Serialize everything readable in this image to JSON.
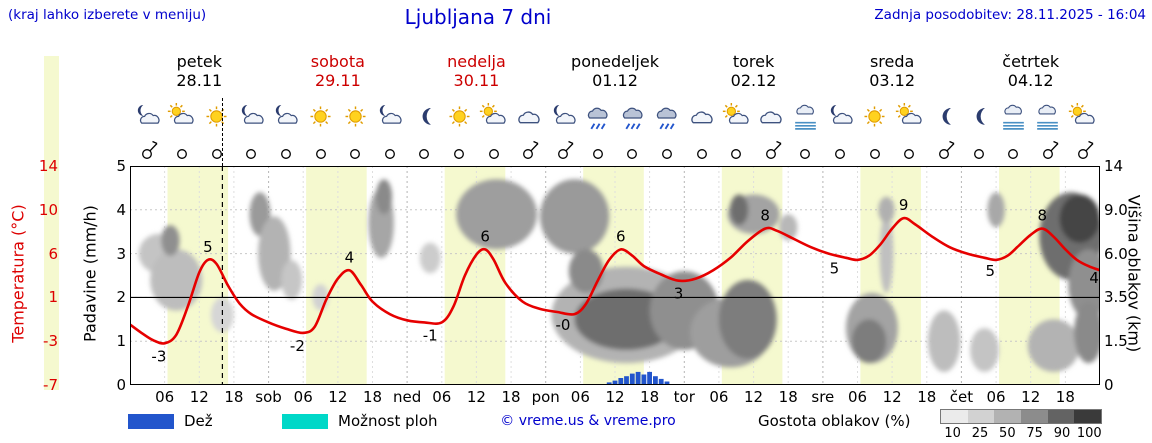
{
  "colors": {
    "blue_text": "#0000cc",
    "red_text": "#dd0000",
    "day_red": "#cc0000",
    "day_black": "#000000",
    "temp_curve": "#e60000",
    "rain": "#2255cc",
    "showers": "#00d8c8",
    "day_band": "#f5f9cf"
  },
  "header": {
    "hint": "(kraj lahko izberete v meniju)",
    "title": "Ljubljana 7 dni",
    "updated": "Zadnja posodobitev: 28.11.2025 - 16:04"
  },
  "days": [
    {
      "name": "petek",
      "date": "28.11",
      "color": "#000000"
    },
    {
      "name": "sobota",
      "date": "29.11",
      "color": "#cc0000"
    },
    {
      "name": "nedelja",
      "date": "30.11",
      "color": "#cc0000"
    },
    {
      "name": "ponedeljek",
      "date": "01.12",
      "color": "#000000"
    },
    {
      "name": "torek",
      "date": "02.12",
      "color": "#000000"
    },
    {
      "name": "sreda",
      "date": "03.12",
      "color": "#000000"
    },
    {
      "name": "četrtek",
      "date": "04.12",
      "color": "#000000"
    }
  ],
  "axes": {
    "temp": {
      "label": "Temperatura (°C)",
      "ticks": [
        "14",
        "10",
        "6",
        "1",
        "-3",
        "-7"
      ]
    },
    "precip": {
      "label": "Padavine (mm/h)",
      "ticks": [
        "5",
        "4",
        "3",
        "2",
        "1",
        "0"
      ]
    },
    "cloud": {
      "label": "Višina oblakov (km)",
      "ticks": [
        "14",
        "9.0",
        "6.0",
        "3.5",
        "1.5",
        "0"
      ]
    }
  },
  "icon_row": [
    "moon-cloud",
    "sun-cloud",
    "sun",
    "moon-cloud",
    "moon-cloud",
    "sun",
    "sun",
    "moon-cloud",
    "moon",
    "sun",
    "sun-cloud",
    "cloud",
    "moon-cloud",
    "rain",
    "rain",
    "rain",
    "cloud",
    "sun-cloud",
    "cloud",
    "fog",
    "moon-cloud",
    "sun",
    "sun-cloud",
    "moon",
    "moon",
    "fog",
    "fog",
    "sun-cloud"
  ],
  "wind_row": {
    "count": 28,
    "barb_indices": [
      0,
      11,
      12,
      18,
      23,
      26,
      27
    ]
  },
  "legend": {
    "rain": "Dež",
    "showers": "Možnost ploh",
    "credit": "© vreme.us & vreme.pro",
    "cloud_density": "Gostota oblakov (%)",
    "cloud_scale": [
      "10",
      "25",
      "50",
      "75",
      "90",
      "100"
    ],
    "cloud_scale_colors": [
      "#ebebeb",
      "#d2d2d2",
      "#b2b2b2",
      "#8c8c8c",
      "#636363",
      "#3a3a3a"
    ]
  },
  "chart_data": {
    "type": "meteogram",
    "x_hours_range": [
      0,
      168
    ],
    "temp_axis_range": [
      -7,
      14
    ],
    "precip_axis_range": [
      0,
      5
    ],
    "cloud_height_axis_km": [
      "0",
      "1.5",
      "3.5",
      "6.0",
      "9.0",
      "14"
    ],
    "now_hour": 16,
    "bold_gridline_u": 2,
    "day_bands": [
      [
        6.5,
        17
      ],
      [
        30.5,
        41
      ],
      [
        54.5,
        65
      ],
      [
        78.5,
        89
      ],
      [
        102.5,
        113
      ],
      [
        126.5,
        137
      ],
      [
        150.5,
        161
      ]
    ],
    "temperature_series": [
      [
        0,
        -1.2
      ],
      [
        2,
        -2
      ],
      [
        4,
        -2.7
      ],
      [
        6,
        -3
      ],
      [
        8,
        -2.2
      ],
      [
        10,
        0.5
      ],
      [
        12,
        3.8
      ],
      [
        13.5,
        5
      ],
      [
        15,
        4.6
      ],
      [
        17,
        2.5
      ],
      [
        19,
        0.8
      ],
      [
        21,
        -0.2
      ],
      [
        24,
        -1
      ],
      [
        27,
        -1.6
      ],
      [
        30,
        -2
      ],
      [
        32,
        -1.4
      ],
      [
        34,
        1.2
      ],
      [
        36,
        3.2
      ],
      [
        38,
        4
      ],
      [
        40,
        2.6
      ],
      [
        42,
        1
      ],
      [
        45,
        -0.2
      ],
      [
        48,
        -0.8
      ],
      [
        51,
        -1
      ],
      [
        54,
        -1
      ],
      [
        56,
        0.5
      ],
      [
        58,
        3.5
      ],
      [
        60,
        5.5
      ],
      [
        61.5,
        6
      ],
      [
        63,
        5
      ],
      [
        65,
        2.8
      ],
      [
        68,
        1
      ],
      [
        71,
        0.3
      ],
      [
        74,
        0
      ],
      [
        77,
        -0.2
      ],
      [
        79,
        0.8
      ],
      [
        81,
        3
      ],
      [
        83,
        5
      ],
      [
        85,
        6
      ],
      [
        87,
        5.4
      ],
      [
        89,
        4.4
      ],
      [
        92,
        3.6
      ],
      [
        95,
        3
      ],
      [
        98,
        3.2
      ],
      [
        101,
        4
      ],
      [
        104,
        5.2
      ],
      [
        107,
        6.8
      ],
      [
        110,
        8
      ],
      [
        112,
        7.8
      ],
      [
        115,
        7
      ],
      [
        118,
        6.2
      ],
      [
        121,
        5.6
      ],
      [
        124,
        5.2
      ],
      [
        126,
        5
      ],
      [
        128,
        5.4
      ],
      [
        130,
        6.5
      ],
      [
        132,
        8
      ],
      [
        134,
        9
      ],
      [
        136,
        8.4
      ],
      [
        139,
        7.2
      ],
      [
        142,
        6.2
      ],
      [
        145,
        5.6
      ],
      [
        148,
        5.2
      ],
      [
        150,
        5
      ],
      [
        152,
        5.4
      ],
      [
        154,
        6.4
      ],
      [
        156,
        7.4
      ],
      [
        158,
        8
      ],
      [
        160,
        7.2
      ],
      [
        162,
        6
      ],
      [
        164,
        5
      ],
      [
        166,
        4.4
      ],
      [
        168,
        4
      ]
    ],
    "temp_labels": [
      [
        "-3",
        5,
        -3,
        18
      ],
      [
        "5",
        13.5,
        5,
        -8
      ],
      [
        "-2",
        29,
        -2,
        18
      ],
      [
        "4",
        38,
        4,
        -8
      ],
      [
        "-1",
        52,
        -1,
        18
      ],
      [
        "6",
        61.5,
        6,
        -8
      ],
      [
        "-0",
        75,
        0,
        18
      ],
      [
        "6",
        85,
        6,
        -8
      ],
      [
        "3",
        95,
        3,
        18
      ],
      [
        "8",
        110,
        8,
        -8
      ],
      [
        "5",
        122,
        5.4,
        18
      ],
      [
        "9",
        134,
        9,
        -8
      ],
      [
        "5",
        149,
        5.2,
        18
      ],
      [
        "8",
        158,
        8,
        -8
      ],
      [
        "4",
        167,
        4.3,
        16
      ]
    ],
    "rain_bars": [
      [
        83,
        0.06
      ],
      [
        84,
        0.1
      ],
      [
        85,
        0.16
      ],
      [
        86,
        0.2
      ],
      [
        87,
        0.26
      ],
      [
        88,
        0.3
      ],
      [
        89,
        0.24
      ],
      [
        90,
        0.3
      ],
      [
        91,
        0.2
      ],
      [
        92,
        0.14
      ],
      [
        93,
        0.08
      ]
    ],
    "clouds": [
      [
        5,
        3.0,
        3.5,
        0.45,
        "#c4c4c4"
      ],
      [
        8,
        2.4,
        4.5,
        0.7,
        "#bdbdbd"
      ],
      [
        7,
        3.3,
        1.6,
        0.35,
        "#8f8f8f"
      ],
      [
        16,
        1.6,
        2,
        0.4,
        "#d6d6d6"
      ],
      [
        22.5,
        3.9,
        1.8,
        0.5,
        "#9a9a9a"
      ],
      [
        25,
        3.0,
        2.8,
        0.85,
        "#b3b3b3"
      ],
      [
        28,
        2.4,
        1.8,
        0.45,
        "#c6c6c6"
      ],
      [
        33,
        2.0,
        1.4,
        0.3,
        "#d2d2d2"
      ],
      [
        43.5,
        3.7,
        2.2,
        0.8,
        "#a6a6a6"
      ],
      [
        44,
        4.3,
        1.4,
        0.4,
        "#8a8a8a"
      ],
      [
        52,
        2.9,
        1.8,
        0.35,
        "#cccccc"
      ],
      [
        64,
        4.05,
        6,
        0.5,
        "#4d4d4d"
      ],
      [
        63.5,
        3.9,
        7,
        0.8,
        "#9e9e9e"
      ],
      [
        77,
        4.0,
        4.5,
        0.55,
        "#555555"
      ],
      [
        77,
        3.85,
        6,
        0.85,
        "#9a9a9a"
      ],
      [
        86,
        1.6,
        13,
        1.1,
        "#b3b3b3"
      ],
      [
        86,
        1.5,
        9,
        0.7,
        "#6e6e6e"
      ],
      [
        79,
        2.6,
        3,
        0.5,
        "#8a8a8a"
      ],
      [
        96,
        1.7,
        6,
        0.9,
        "#8f8f8f"
      ],
      [
        104,
        1.2,
        7,
        0.8,
        "#9e9e9e"
      ],
      [
        107,
        1.5,
        5,
        0.9,
        "#7d7d7d"
      ],
      [
        108,
        3.9,
        4.5,
        0.45,
        "#a3a3a3"
      ],
      [
        105.5,
        4.0,
        1.6,
        0.35,
        "#6e6e6e"
      ],
      [
        114,
        3.6,
        1.6,
        0.3,
        "#b8b8b8"
      ],
      [
        128.5,
        1.3,
        4.5,
        0.8,
        "#a3a3a3"
      ],
      [
        128,
        1.0,
        3,
        0.5,
        "#7d7d7d"
      ],
      [
        131,
        3.0,
        1.2,
        0.9,
        "#c0c0c0"
      ],
      [
        131,
        4.0,
        1.4,
        0.3,
        "#b0b0b0"
      ],
      [
        141,
        1.0,
        2.8,
        0.7,
        "#bdbdbd"
      ],
      [
        150,
        4.0,
        1.5,
        0.4,
        "#a8a8a8"
      ],
      [
        148,
        0.8,
        2.5,
        0.5,
        "#c4c4c4"
      ],
      [
        160,
        0.9,
        4.5,
        0.6,
        "#b3b3b3"
      ],
      [
        163,
        3.4,
        5.5,
        1.0,
        "#6e6e6e"
      ],
      [
        164.5,
        3.8,
        3.5,
        0.55,
        "#454545"
      ],
      [
        166,
        2.3,
        3.5,
        0.8,
        "#8f8f8f"
      ],
      [
        166,
        1.2,
        2.5,
        0.7,
        "#8a8a8a"
      ]
    ],
    "x_ticks": [
      [
        "06",
        6
      ],
      [
        "12",
        12
      ],
      [
        "18",
        18
      ],
      [
        "sob",
        24
      ],
      [
        "06",
        30
      ],
      [
        "12",
        36
      ],
      [
        "18",
        42
      ],
      [
        "ned",
        48
      ],
      [
        "06",
        54
      ],
      [
        "12",
        60
      ],
      [
        "18",
        66
      ],
      [
        "pon",
        72
      ],
      [
        "06",
        78
      ],
      [
        "12",
        84
      ],
      [
        "18",
        90
      ],
      [
        "tor",
        96
      ],
      [
        "06",
        102
      ],
      [
        "12",
        108
      ],
      [
        "18",
        114
      ],
      [
        "sre",
        120
      ],
      [
        "06",
        126
      ],
      [
        "12",
        132
      ],
      [
        "18",
        138
      ],
      [
        "čet",
        144
      ],
      [
        "06",
        150
      ],
      [
        "12",
        156
      ],
      [
        "18",
        162
      ]
    ]
  }
}
